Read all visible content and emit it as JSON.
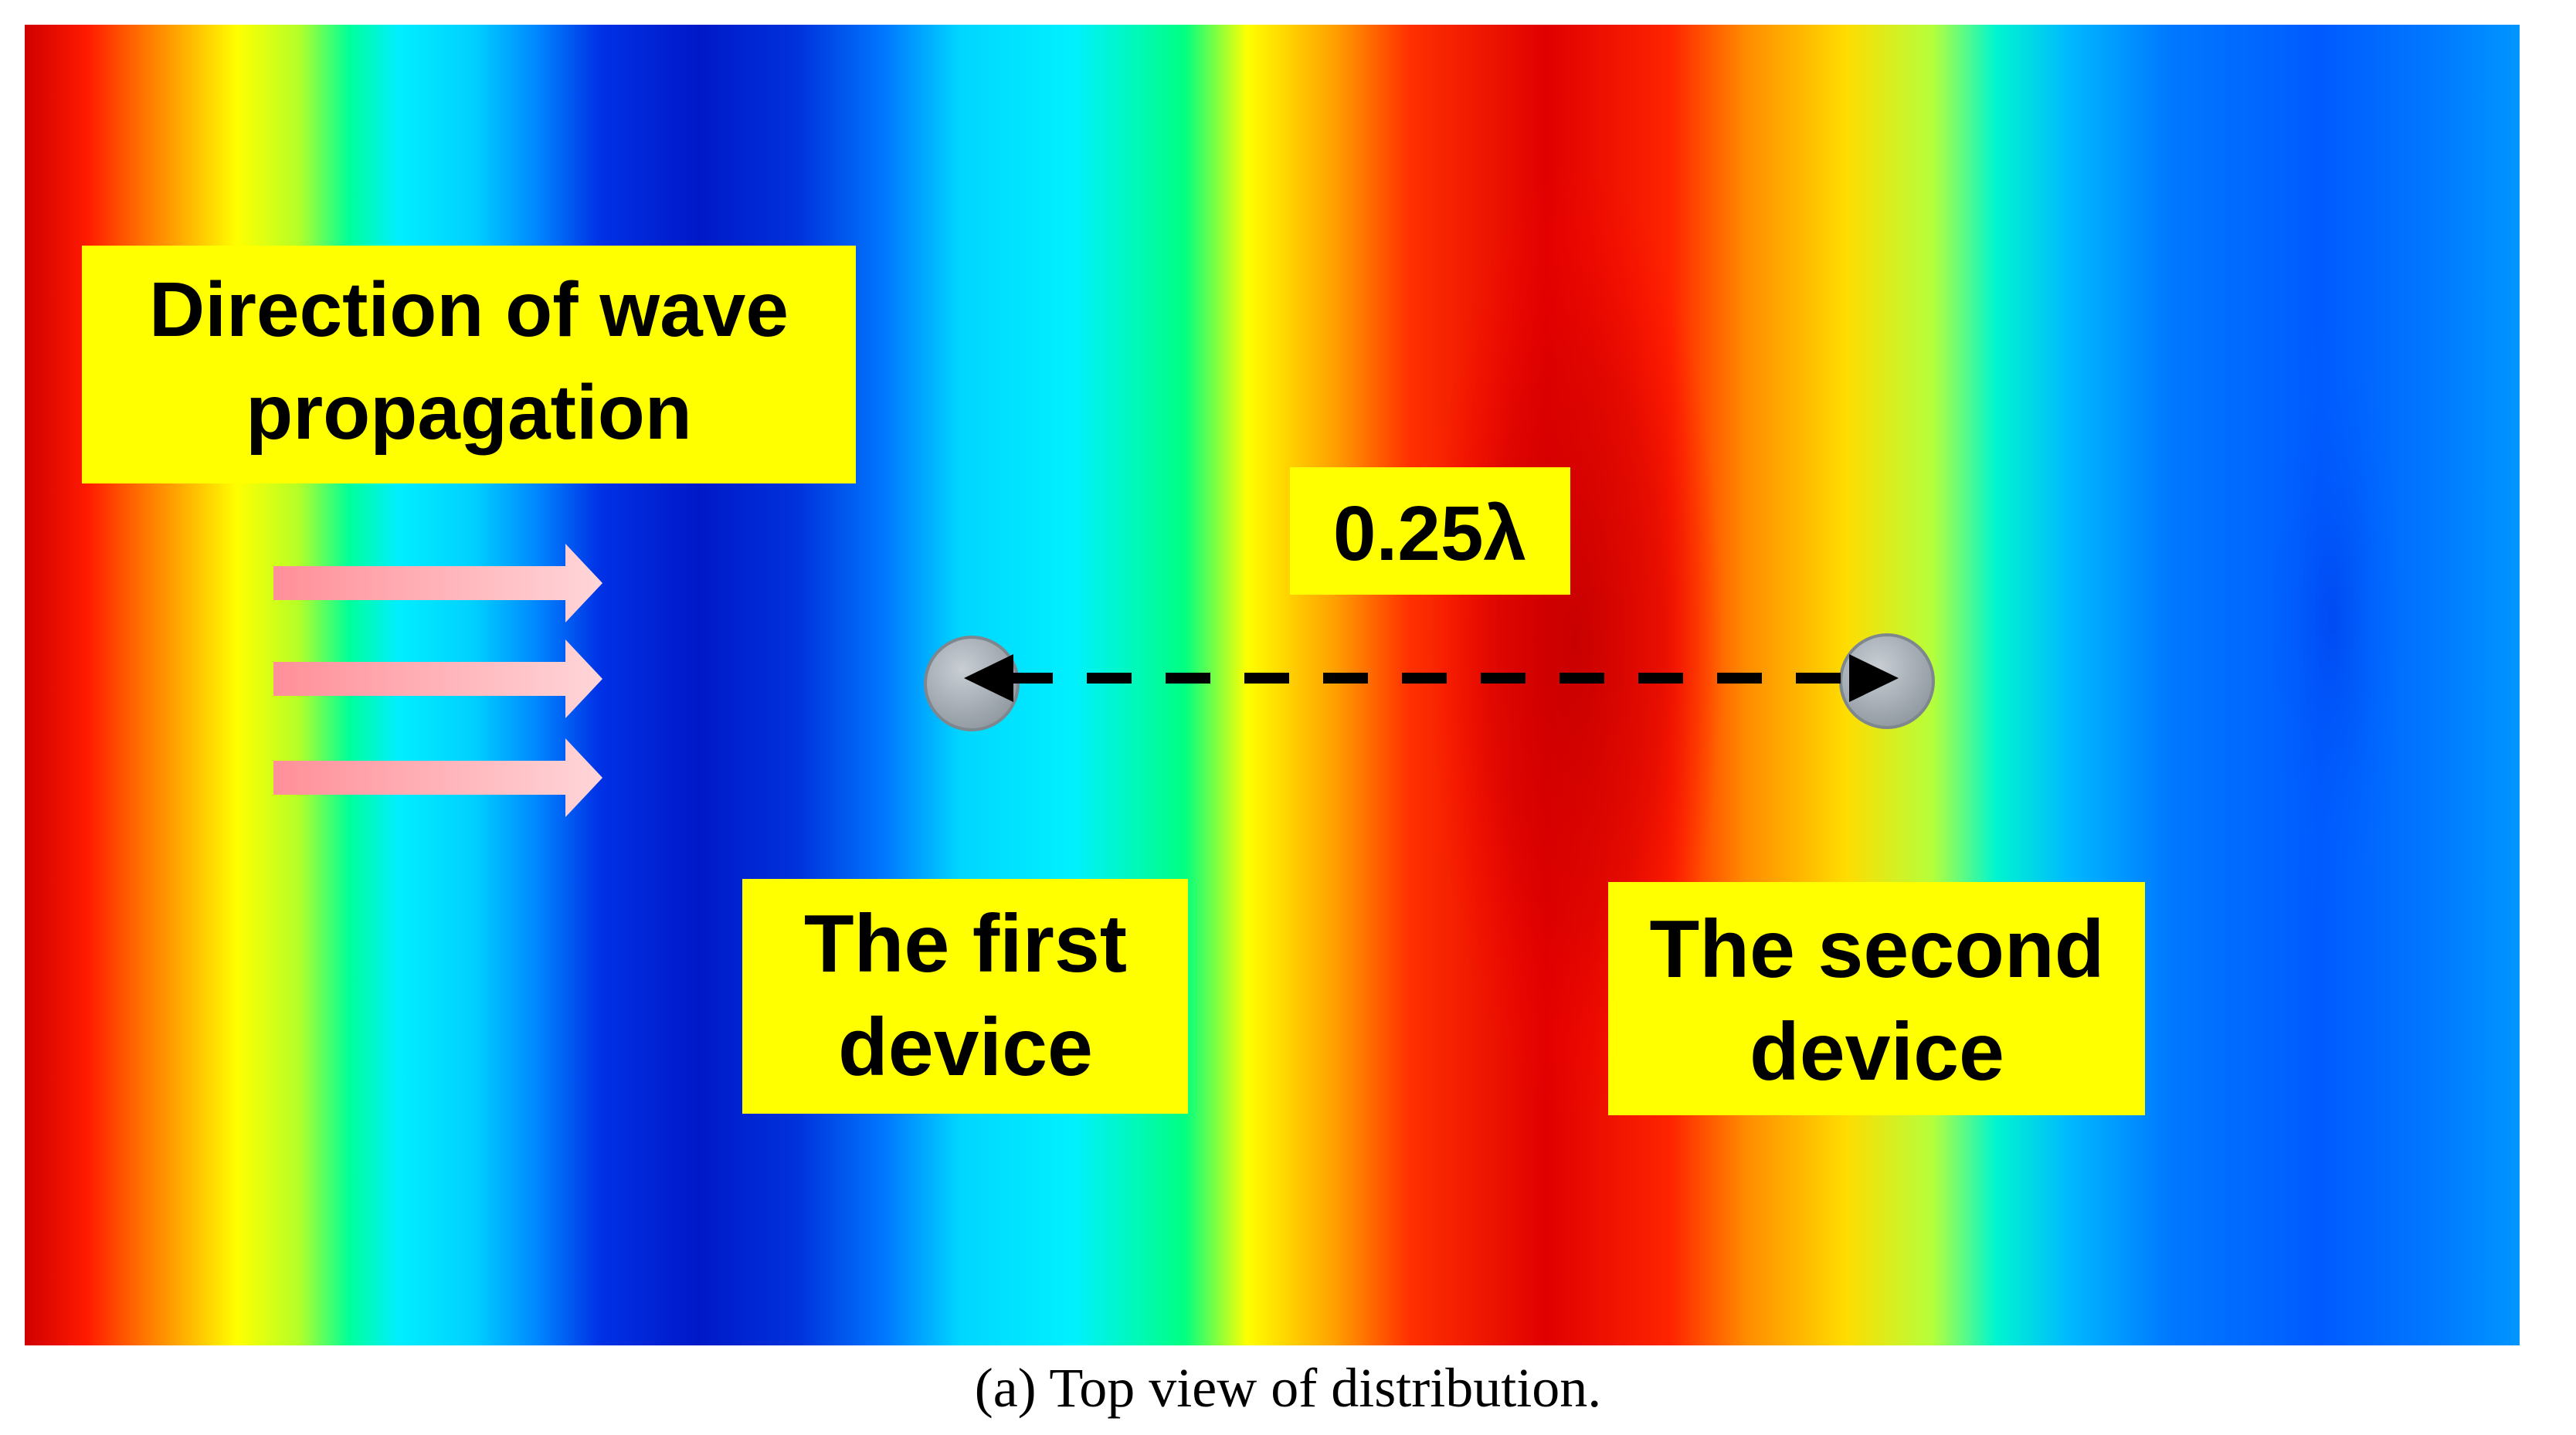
{
  "labels": {
    "direction_line1": "Direction of wave",
    "direction_line2": "propagation",
    "distance": "0.25λ",
    "first_line1": "The first",
    "first_line2": "device",
    "second_line1": "The second",
    "second_line2": "device"
  },
  "caption": "(a) Top view of distribution.",
  "colors": {
    "label_background": "#ffff00",
    "label_text": "#000000",
    "arrow_fill": "#ffb3b8",
    "device_fill": "#a9b0b8",
    "dashed_line": "#000000"
  },
  "colormap": [
    "#0a00a8",
    "#0046ff",
    "#00b4ff",
    "#00f0ff",
    "#00ff6e",
    "#c8ff00",
    "#ffff00",
    "#ffb400",
    "#ff5000",
    "#ff0000",
    "#d20000"
  ]
}
